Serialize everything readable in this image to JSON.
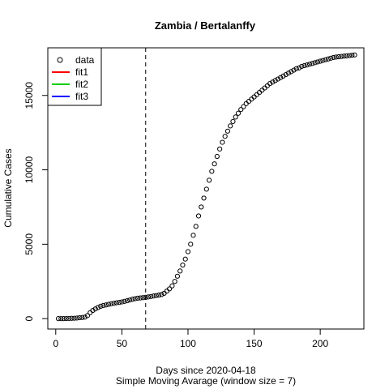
{
  "chart_data": {
    "type": "scatter",
    "title": "Zambia / Bertalanffy",
    "xlabel": "Days since 2020-04-18",
    "subtitle": "Simple Moving Avarage (window size = 7)",
    "ylabel": "Cumulative Cases",
    "xlim": [
      -6,
      233
    ],
    "ylim": [
      -700,
      18200
    ],
    "x_ticks": [
      0,
      50,
      100,
      150,
      200
    ],
    "y_ticks": [
      0,
      5000,
      10000,
      15000
    ],
    "vline_x": 68,
    "legend": {
      "position": "top-left",
      "entries": [
        {
          "label": "data",
          "symbol": "circle",
          "color": "#000000"
        },
        {
          "label": "fit1",
          "symbol": "line",
          "color": "#ff0000"
        },
        {
          "label": "fit2",
          "symbol": "line",
          "color": "#00cd00"
        },
        {
          "label": "fit3",
          "symbol": "line",
          "color": "#0000ff"
        }
      ]
    },
    "series": [
      {
        "x": [
          2,
          4,
          6,
          8,
          10,
          12,
          14,
          16,
          18,
          20,
          22,
          24,
          26,
          28,
          30,
          32,
          34,
          36,
          38,
          40,
          42,
          44,
          46,
          48,
          50,
          52,
          54,
          56,
          58,
          60,
          62,
          64,
          66,
          68,
          70,
          72,
          74,
          76,
          78,
          80,
          82,
          84,
          86,
          88,
          90,
          92,
          94,
          96,
          98,
          100,
          102,
          104,
          106,
          108,
          110,
          112,
          114,
          116,
          118,
          120,
          122,
          124,
          126,
          128,
          130,
          132,
          134,
          136,
          138,
          140,
          142,
          144,
          146,
          148,
          150,
          152,
          154,
          156,
          158,
          160,
          162,
          164,
          166,
          168,
          170,
          172,
          174,
          176,
          178,
          180,
          182,
          184,
          186,
          188,
          190,
          192,
          194,
          196,
          198,
          200,
          202,
          204,
          206,
          208,
          210,
          212,
          214,
          216,
          218,
          220,
          222,
          224,
          226
        ],
        "y": [
          0,
          0,
          0,
          5,
          10,
          20,
          25,
          40,
          60,
          75,
          100,
          200,
          400,
          550,
          650,
          750,
          830,
          880,
          920,
          960,
          1000,
          1030,
          1060,
          1090,
          1120,
          1160,
          1200,
          1250,
          1300,
          1340,
          1370,
          1390,
          1410,
          1430,
          1460,
          1490,
          1520,
          1550,
          1580,
          1620,
          1700,
          1850,
          2000,
          2200,
          2500,
          2850,
          3200,
          3600,
          4000,
          4500,
          5000,
          5600,
          6200,
          6900,
          7500,
          8100,
          8700,
          9300,
          9900,
          10400,
          10900,
          11400,
          11850,
          12250,
          12600,
          12950,
          13250,
          13550,
          13800,
          14050,
          14250,
          14450,
          14600,
          14750,
          14900,
          15050,
          15200,
          15350,
          15500,
          15650,
          15800,
          15900,
          16000,
          16100,
          16200,
          16300,
          16400,
          16500,
          16600,
          16700,
          16800,
          16850,
          16950,
          17000,
          17050,
          17100,
          17150,
          17200,
          17250,
          17300,
          17350,
          17400,
          17450,
          17500,
          17550,
          17580,
          17600,
          17620,
          17640,
          17660,
          17680,
          17700,
          17720
        ]
      }
    ]
  }
}
